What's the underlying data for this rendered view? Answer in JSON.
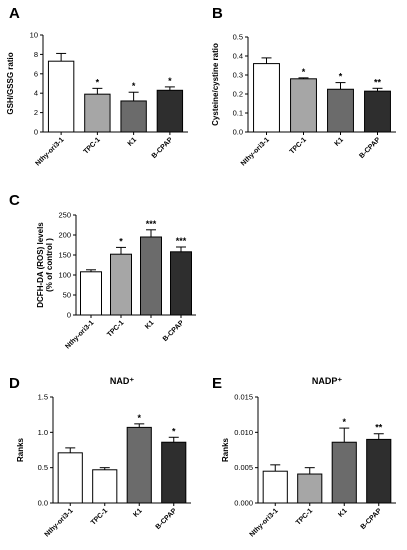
{
  "chart_data": [
    {
      "panel": "A",
      "type": "bar",
      "ylabel": "GSH/GSSG ratio",
      "categories": [
        "Nthy-ori3-1",
        "TPC-1",
        "K1",
        "B-CPAP"
      ],
      "values": [
        7.3,
        3.9,
        3.2,
        4.3
      ],
      "errors": [
        0.8,
        0.6,
        0.9,
        0.35
      ],
      "significance": [
        "",
        "*",
        "*",
        "*"
      ],
      "colors": [
        "#ffffff",
        "#a6a6a6",
        "#6b6b6b",
        "#2e2e2e"
      ],
      "ylim": [
        0,
        10
      ],
      "yticks": [
        "0",
        "2",
        "4",
        "6",
        "8",
        "10"
      ]
    },
    {
      "panel": "B",
      "type": "bar",
      "ylabel": "Cysteine/cystine ratio",
      "categories": [
        "Nthy-ori3-1",
        "TPC-1",
        "K1",
        "B-CPAP"
      ],
      "values": [
        0.36,
        0.28,
        0.225,
        0.215
      ],
      "errors": [
        0.03,
        0.005,
        0.035,
        0.015
      ],
      "significance": [
        "",
        "*",
        "*",
        "**"
      ],
      "colors": [
        "#ffffff",
        "#a6a6a6",
        "#6b6b6b",
        "#2e2e2e"
      ],
      "ylim": [
        0,
        0.5
      ],
      "yticks": [
        "0.0",
        "0.1",
        "0.2",
        "0.3",
        "0.4",
        "0.5"
      ]
    },
    {
      "panel": "C",
      "type": "bar",
      "ylabel": "DCFH-DA (ROS) levels",
      "ylabel2": "(% of control )",
      "categories": [
        "Nthy-ori3-1",
        "TPC-1",
        "K1",
        "B-CPAP"
      ],
      "values": [
        108,
        152,
        195,
        158
      ],
      "errors": [
        5,
        17,
        18,
        12
      ],
      "significance": [
        "",
        "*",
        "***",
        "***"
      ],
      "colors": [
        "#ffffff",
        "#a6a6a6",
        "#6b6b6b",
        "#2e2e2e"
      ],
      "ylim": [
        0,
        250
      ],
      "yticks": [
        "0",
        "50",
        "100",
        "150",
        "200",
        "250"
      ]
    },
    {
      "panel": "D",
      "type": "bar",
      "title": "NAD⁺",
      "ylabel": "Ranks",
      "categories": [
        "Nthy-ori3-1",
        "TPC-1",
        "K1",
        "B-CPAP"
      ],
      "values": [
        0.71,
        0.47,
        1.07,
        0.86
      ],
      "errors": [
        0.07,
        0.03,
        0.05,
        0.07
      ],
      "significance": [
        "",
        "",
        "*",
        "*"
      ],
      "colors": [
        "#ffffff",
        "#ffffff",
        "#6b6b6b",
        "#2e2e2e"
      ],
      "ylim": [
        0,
        1.5
      ],
      "yticks": [
        "0.0",
        "0.5",
        "1.0",
        "1.5"
      ]
    },
    {
      "panel": "E",
      "type": "bar",
      "title": "NADP⁺",
      "ylabel": "Ranks",
      "categories": [
        "Nthy-ori3-1",
        "TPC-1",
        "K1",
        "B-CPAP"
      ],
      "values": [
        0.0045,
        0.0041,
        0.0086,
        0.009
      ],
      "errors": [
        0.0009,
        0.0009,
        0.002,
        0.0008
      ],
      "significance": [
        "",
        "",
        "*",
        "**"
      ],
      "colors": [
        "#ffffff",
        "#a6a6a6",
        "#6b6b6b",
        "#2e2e2e"
      ],
      "ylim": [
        0,
        0.015
      ],
      "yticks": [
        "0.000",
        "0.005",
        "0.010",
        "0.015"
      ]
    }
  ]
}
